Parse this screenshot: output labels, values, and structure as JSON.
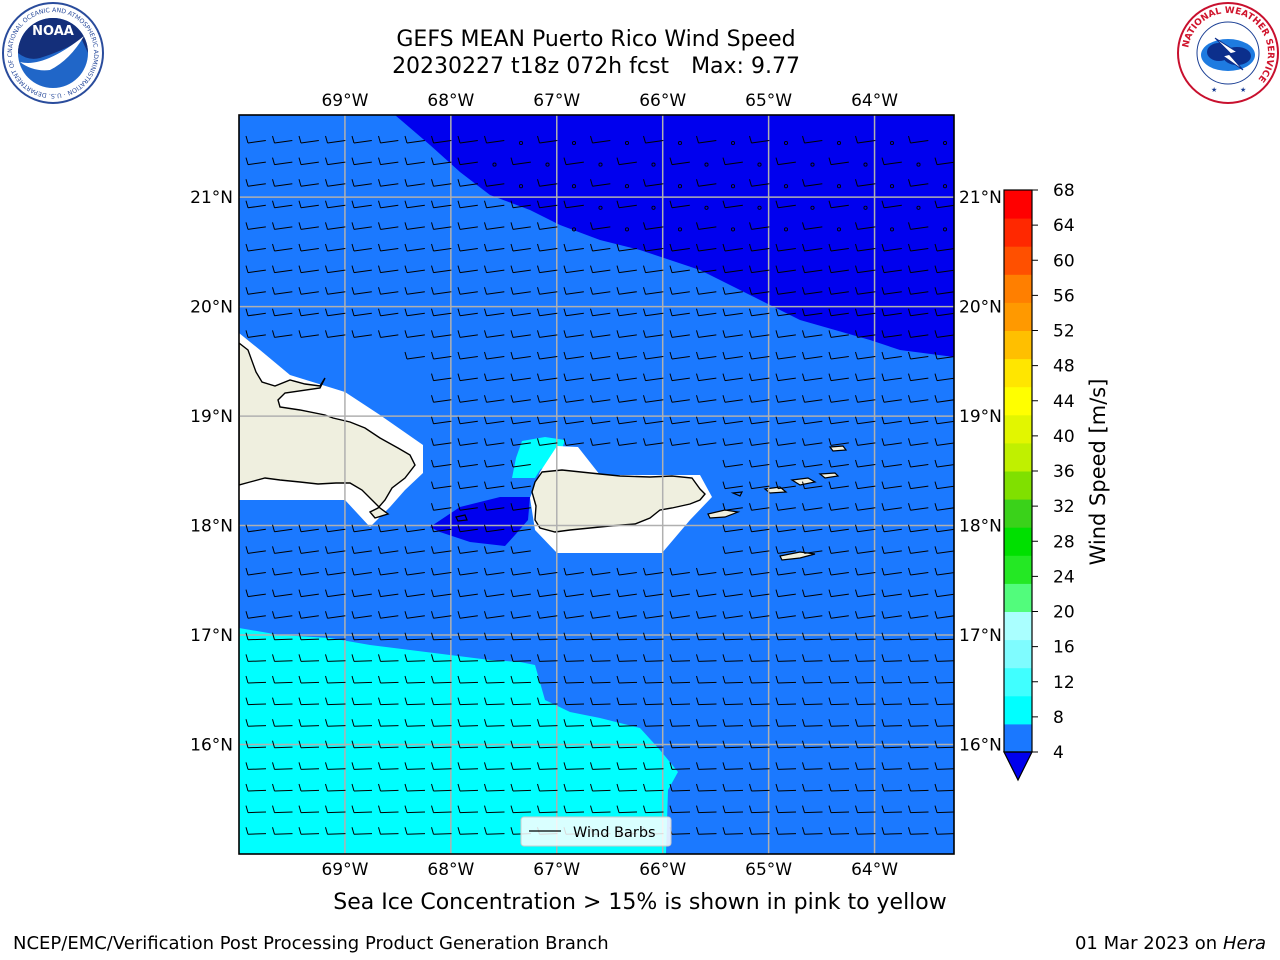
{
  "header": {
    "title_line1": "GEFS MEAN Puerto Rico Wind Speed",
    "title_line2": "20230227 t18z 072h fcst",
    "title_max": "Max: 9.77"
  },
  "logos": {
    "noaa": "NOAA",
    "noaa_ring": "NATIONAL OCEANIC AND ATMOSPHERIC ADMINISTRATION · U.S. DEPARTMENT OF COMMERCE",
    "nws_ring": "NATIONAL WEATHER SERVICE"
  },
  "map": {
    "lon_labels": [
      "69°W",
      "68°W",
      "67°W",
      "66°W",
      "65°W",
      "64°W"
    ],
    "lat_labels": [
      "21°N",
      "20°N",
      "19°N",
      "18°N",
      "17°N",
      "16°N"
    ],
    "lon_values": [
      -69,
      -68,
      -67,
      -66,
      -65,
      -64
    ],
    "lat_values": [
      21,
      20,
      19,
      18,
      17,
      16
    ],
    "extent": {
      "lon_min": -70.0,
      "lon_max": -63.25,
      "lat_min": 15.0,
      "lat_max": 21.75
    },
    "legend_label": "Wind Barbs",
    "colors": {
      "band_4_8": "#1b79ff",
      "band_0_4": "#0000ee",
      "band_8_12": "#00ffff",
      "land": "#efefdf",
      "grid": "#b0b0b0"
    }
  },
  "colorbar": {
    "label": "Wind Speed [m/s]",
    "ticks": [
      "68",
      "64",
      "60",
      "56",
      "52",
      "48",
      "44",
      "40",
      "36",
      "32",
      "28",
      "24",
      "20",
      "16",
      "12",
      "8",
      "4"
    ],
    "colors_bottom_to_top": [
      "#1a78ff",
      "#00ffff",
      "#40ffff",
      "#7ffcff",
      "#aaffff",
      "#52fc7c",
      "#24e824",
      "#00e000",
      "#3ad21a",
      "#80e000",
      "#c0f000",
      "#e2f600",
      "#ffff00",
      "#ffe600",
      "#ffbf00",
      "#ff9900",
      "#ff7f00",
      "#ff5000",
      "#ff2800",
      "#ff0000"
    ],
    "extend_color": "#0000ee"
  },
  "subtitle": "Sea Ice Concentration > 15% is shown in pink to yellow",
  "footer": {
    "left": "NCEP/EMC/Verification Post Processing Product Generation Branch",
    "right_date": "01 Mar 2023 on",
    "right_host": "Hera"
  }
}
